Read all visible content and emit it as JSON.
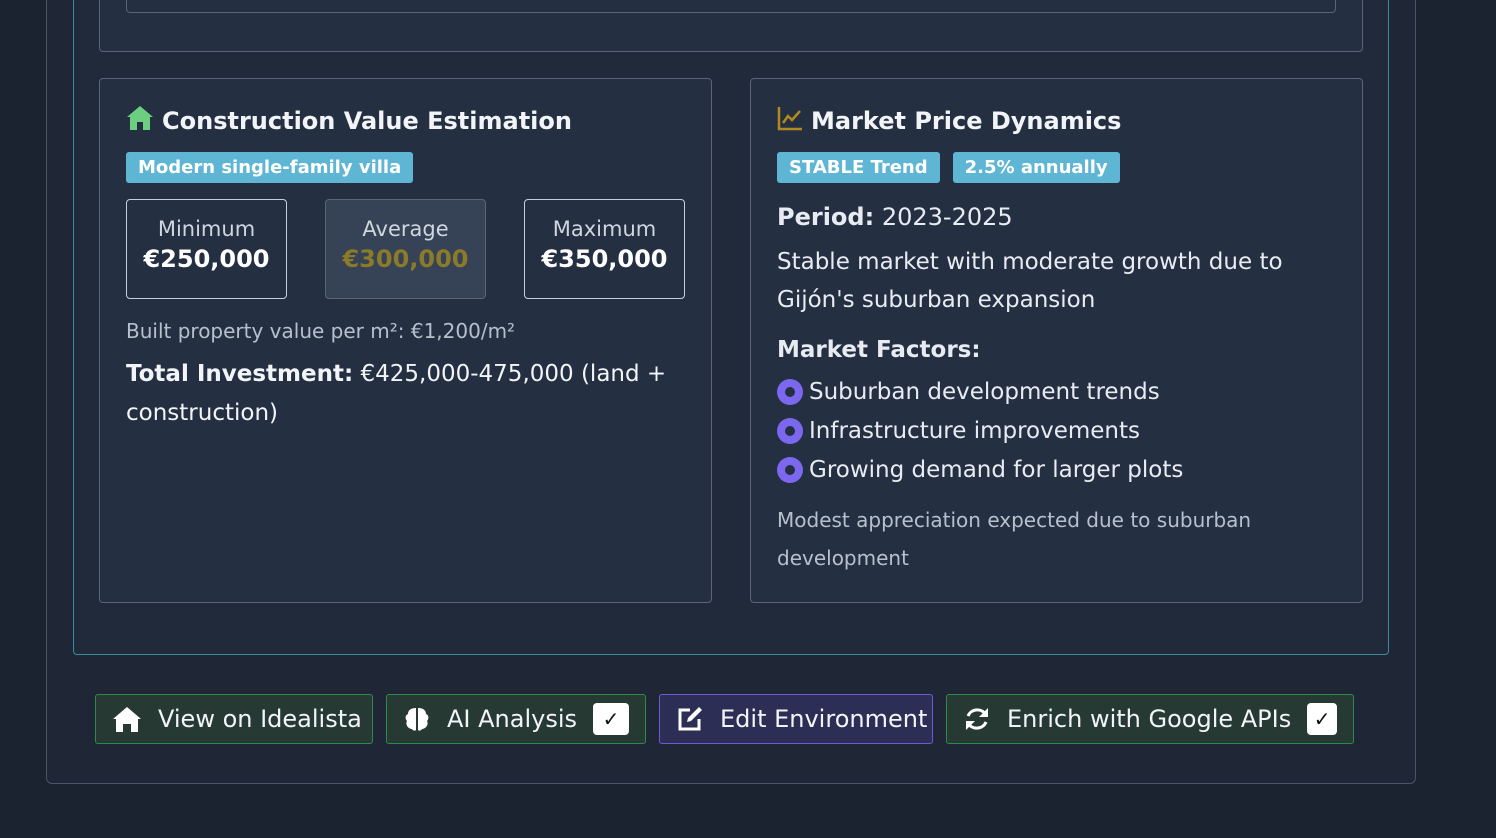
{
  "construction": {
    "title": "Construction Value Estimation",
    "icon": "home-icon",
    "badge": "Modern single-family villa",
    "min_label": "Minimum",
    "min_value": "€250,000",
    "avg_label": "Average",
    "avg_value": "€300,000",
    "max_label": "Maximum",
    "max_value": "€350,000",
    "per_sqm": "Built property value per m²: €1,200/m²",
    "investment_label": "Total Investment:",
    "investment_value": " €425,000-475,000 (land + construction)"
  },
  "market": {
    "title": "Market Price Dynamics",
    "icon": "chart-line-icon",
    "trend_badge": "STABLE Trend",
    "rate_badge": "2.5% annually",
    "period_label": "Period:",
    "period_value": " 2023-2025",
    "description": "Stable market with moderate growth due to Gijón's suburban expansion",
    "factors_title": "Market Factors:",
    "factors": [
      "Suburban development trends",
      "Infrastructure improvements",
      "Growing demand for larger plots"
    ],
    "note": "Modest appreciation expected due to suburban development"
  },
  "actions": {
    "idealista": "View on Idealista",
    "ai_analysis": "AI Analysis",
    "edit_environment": "Edit Environment",
    "enrich": "Enrich with Google APIs",
    "check": "✓"
  },
  "colors": {
    "background": "#1b2230",
    "card": "#243042",
    "badge": "#5fb6d4",
    "bullet": "#7b68ee",
    "home_icon": "#6ccf7f",
    "chart_icon": "#b08a1e",
    "avg_value": "#8a7a2a"
  }
}
